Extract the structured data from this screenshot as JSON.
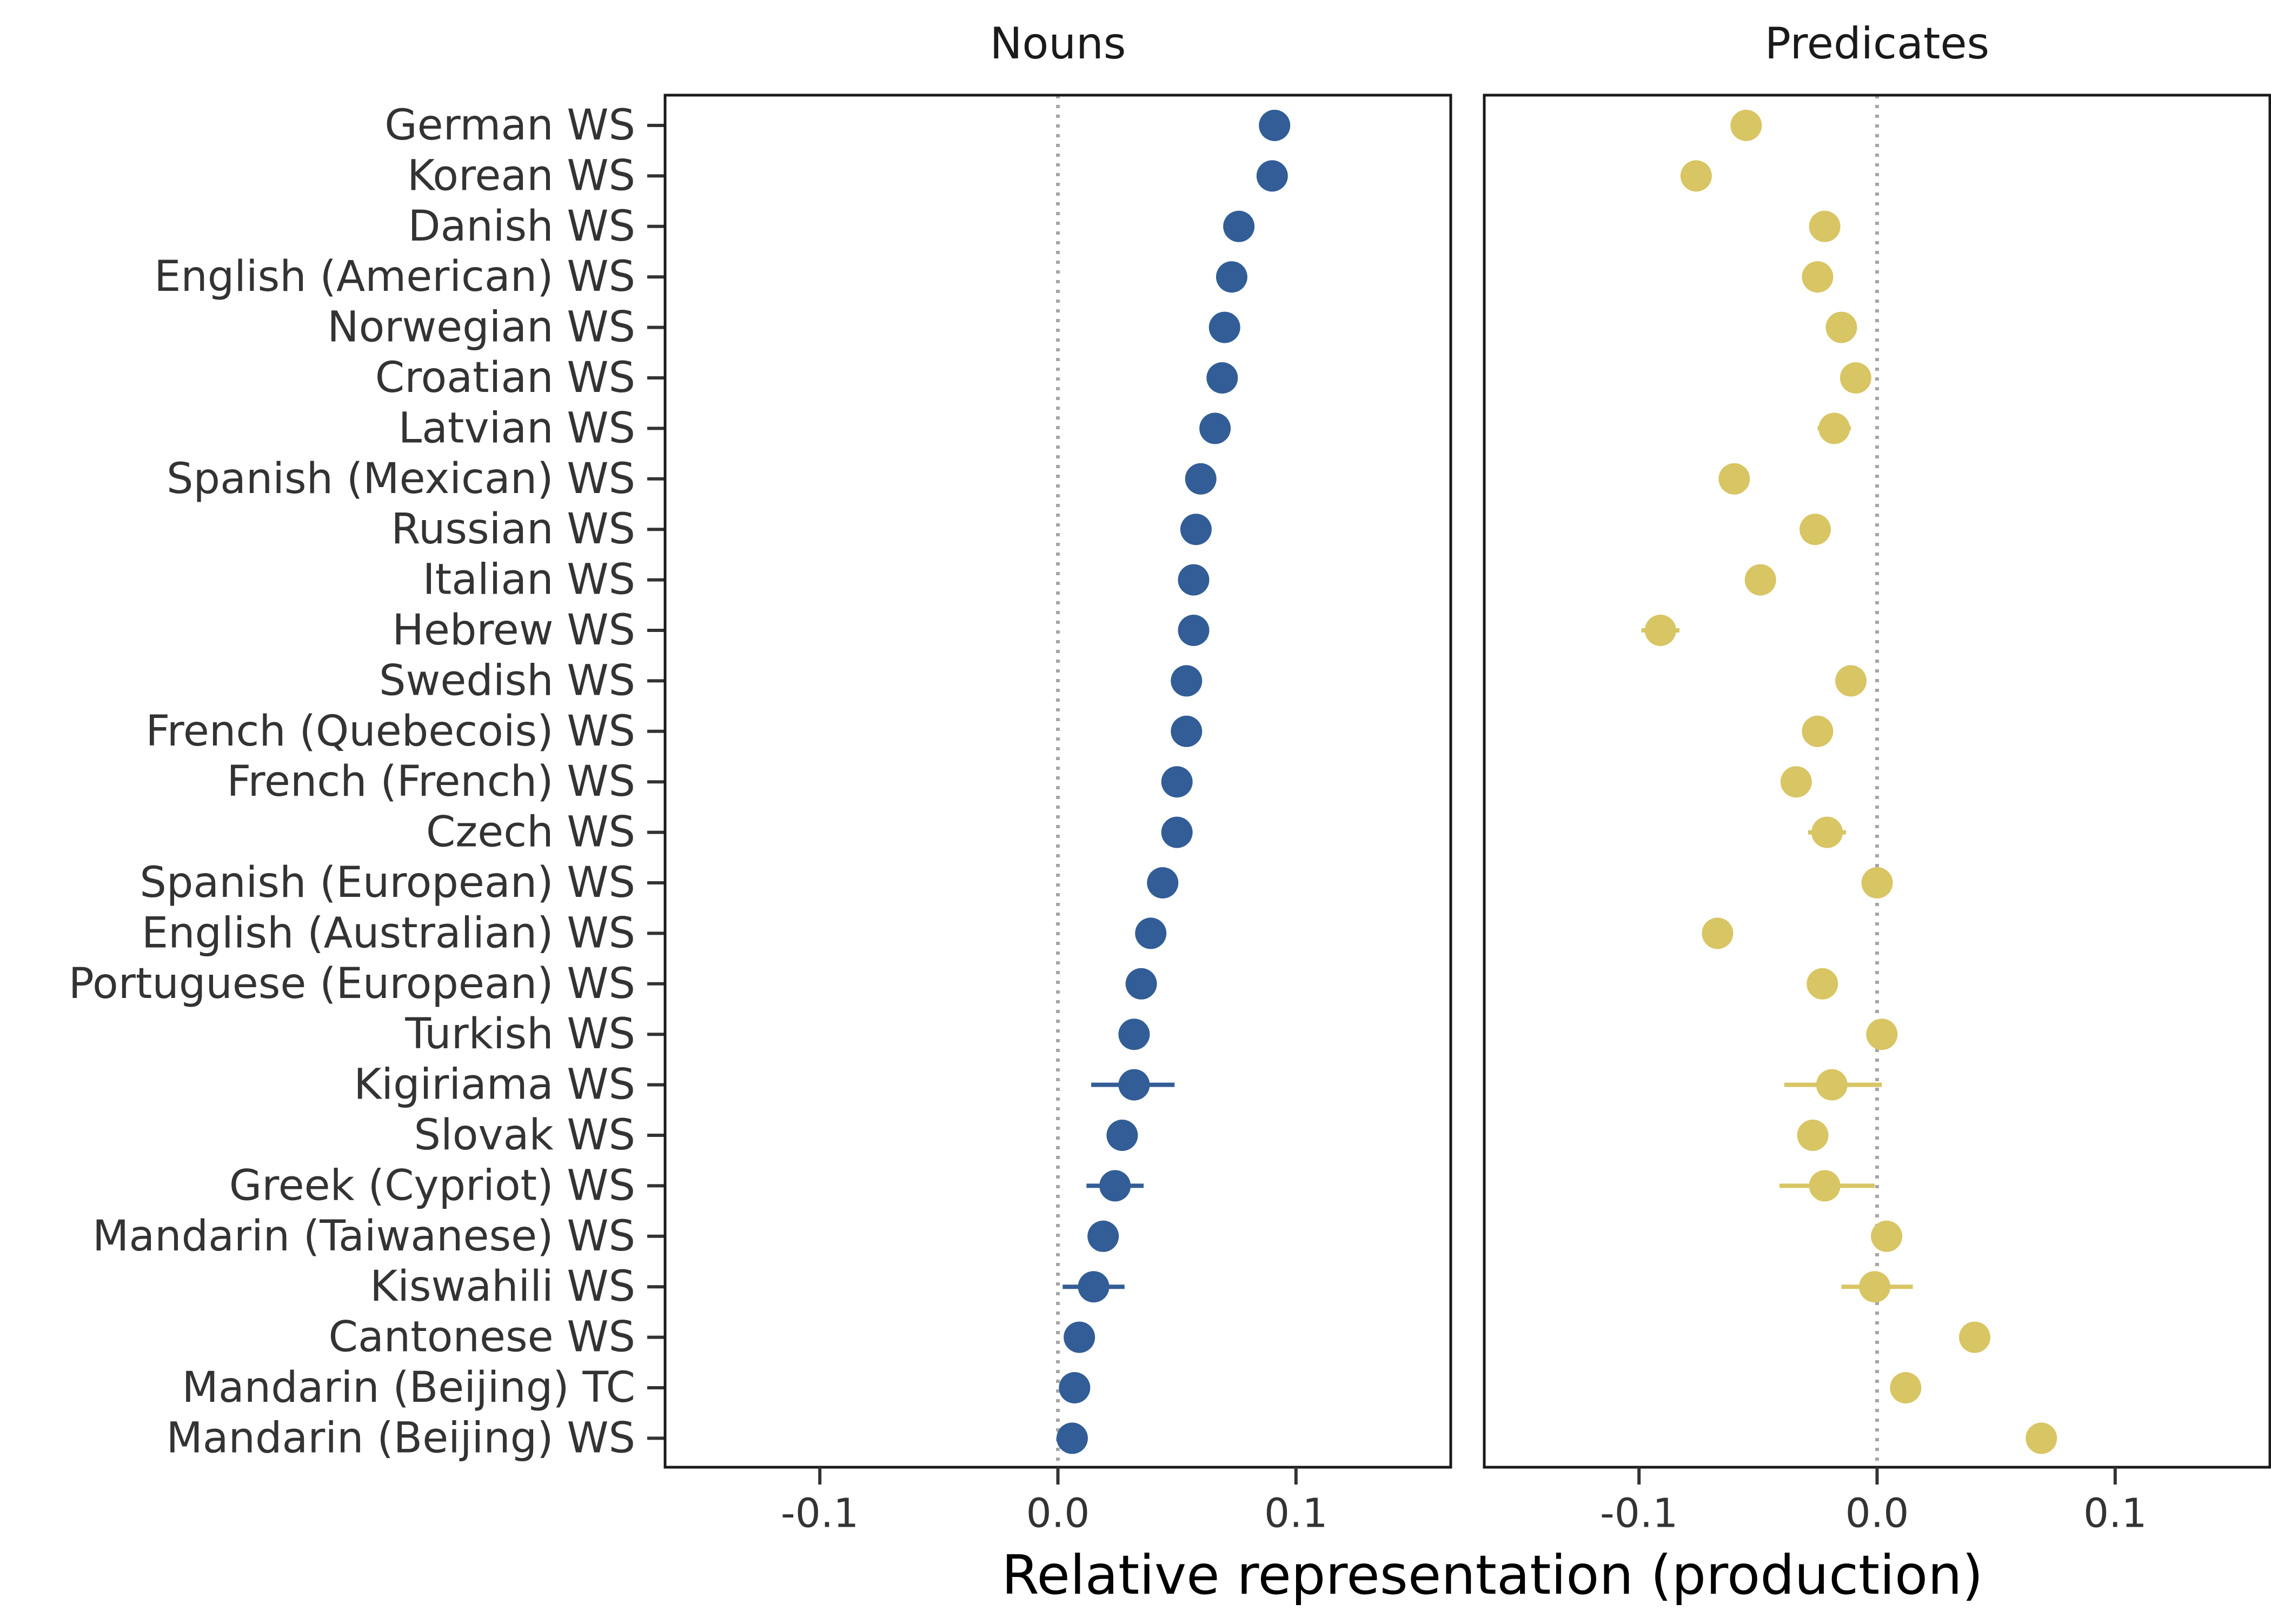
{
  "chart_data": {
    "type": "scatter",
    "xlabel": "Relative representation (production)",
    "xlim": [
      -0.165,
      0.165
    ],
    "xticks": [
      -0.1,
      0.0,
      0.1
    ],
    "xtick_labels": [
      "-0.1",
      "0.0",
      "0.1"
    ],
    "reference_line": 0,
    "grid": false,
    "languages": [
      "German WS",
      "Korean WS",
      "Danish WS",
      "English (American) WS",
      "Norwegian WS",
      "Croatian WS",
      "Latvian WS",
      "Spanish (Mexican) WS",
      "Russian WS",
      "Italian WS",
      "Hebrew WS",
      "Swedish WS",
      "French (Quebecois) WS",
      "French (French) WS",
      "Czech WS",
      "Spanish (European) WS",
      "English (Australian) WS",
      "Portuguese (European) WS",
      "Turkish WS",
      "Kigiriama WS",
      "Slovak WS",
      "Greek (Cypriot) WS",
      "Mandarin (Taiwanese) WS",
      "Kiswahili WS",
      "Cantonese WS",
      "Mandarin (Beijing) TC",
      "Mandarin (Beijing) WS"
    ],
    "panels": [
      {
        "title": "Nouns",
        "color": "#325d96",
        "values": [
          0.091,
          0.09,
          0.076,
          0.073,
          0.07,
          0.069,
          0.066,
          0.06,
          0.058,
          0.057,
          0.057,
          0.054,
          0.054,
          0.05,
          0.05,
          0.044,
          0.039,
          0.035,
          0.032,
          0.032,
          0.027,
          0.024,
          0.019,
          0.015,
          0.009,
          0.007,
          0.006
        ],
        "ci_low": [
          0.089,
          0.088,
          0.074,
          0.071,
          0.068,
          0.067,
          0.064,
          0.058,
          0.056,
          0.055,
          0.055,
          0.052,
          0.052,
          0.048,
          0.048,
          0.042,
          0.036,
          0.033,
          0.03,
          0.014,
          0.025,
          0.012,
          0.017,
          0.002,
          0.007,
          0.005,
          0.004
        ],
        "ci_high": [
          0.093,
          0.092,
          0.078,
          0.075,
          0.072,
          0.071,
          0.068,
          0.062,
          0.06,
          0.059,
          0.059,
          0.056,
          0.056,
          0.052,
          0.052,
          0.046,
          0.042,
          0.037,
          0.034,
          0.049,
          0.029,
          0.036,
          0.021,
          0.028,
          0.011,
          0.009,
          0.008
        ]
      },
      {
        "title": "Predicates",
        "color": "#d8c564",
        "values": [
          -0.055,
          -0.076,
          -0.022,
          -0.025,
          -0.015,
          -0.009,
          -0.018,
          -0.06,
          -0.026,
          -0.049,
          -0.091,
          -0.011,
          -0.025,
          -0.034,
          -0.021,
          0.0,
          -0.067,
          -0.023,
          0.002,
          -0.019,
          -0.027,
          -0.022,
          0.004,
          -0.001,
          0.041,
          0.012,
          0.069
        ],
        "ci_low": [
          -0.057,
          -0.078,
          -0.024,
          -0.027,
          -0.017,
          -0.015,
          -0.025,
          -0.062,
          -0.028,
          -0.051,
          -0.099,
          -0.013,
          -0.027,
          -0.036,
          -0.029,
          -0.002,
          -0.069,
          -0.025,
          0.0,
          -0.039,
          -0.029,
          -0.041,
          0.002,
          -0.015,
          0.039,
          0.01,
          0.067
        ],
        "ci_high": [
          -0.053,
          -0.074,
          -0.02,
          -0.023,
          -0.013,
          -0.003,
          -0.011,
          -0.058,
          -0.024,
          -0.047,
          -0.083,
          -0.009,
          -0.023,
          -0.032,
          -0.013,
          0.002,
          -0.065,
          -0.021,
          0.004,
          0.002,
          -0.025,
          -0.001,
          0.006,
          0.015,
          0.043,
          0.014,
          0.071
        ]
      }
    ]
  }
}
